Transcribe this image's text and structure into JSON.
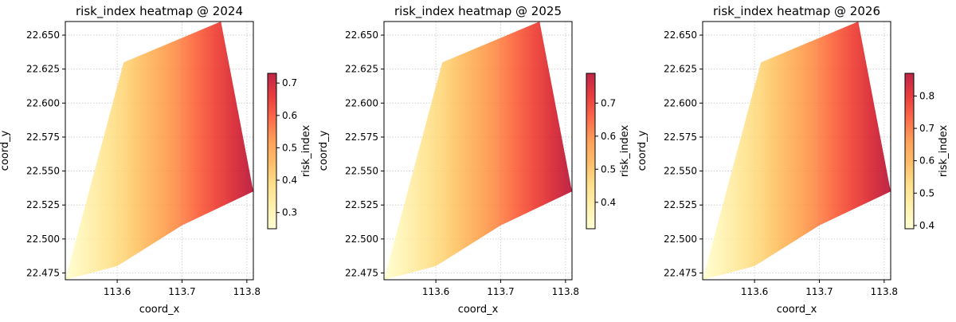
{
  "colormap": [
    "#ffffcc",
    "#ffeda0",
    "#fed976",
    "#feb24c",
    "#fd8d3c",
    "#fc4e2a",
    "#e31a1c",
    "#b10026"
  ],
  "chart_data": [
    {
      "type": "heatmap",
      "title": "risk_index heatmap @ 2024",
      "xlabel": "coord_x",
      "ylabel": "coord_y",
      "xlim": [
        113.52,
        113.81
      ],
      "ylim": [
        22.47,
        22.66
      ],
      "xticks": [
        113.6,
        113.7,
        113.8
      ],
      "yticks": [
        22.475,
        22.5,
        22.525,
        22.55,
        22.575,
        22.6,
        22.625,
        22.65
      ],
      "grid": true,
      "colorbar": {
        "label": "risk_index",
        "range": [
          0.25,
          0.73
        ],
        "ticks": [
          0.3,
          0.4,
          0.5,
          0.6,
          0.7
        ]
      },
      "region_polygon": [
        [
          113.52,
          22.47
        ],
        [
          113.61,
          22.63
        ],
        [
          113.76,
          22.66
        ],
        [
          113.81,
          22.535
        ],
        [
          113.7,
          22.51
        ],
        [
          113.6,
          22.48
        ]
      ],
      "value_vs_x": [
        [
          113.52,
          0.25
        ],
        [
          113.81,
          0.73
        ]
      ]
    },
    {
      "type": "heatmap",
      "title": "risk_index heatmap @ 2025",
      "xlabel": "coord_x",
      "ylabel": "coord_y",
      "xlim": [
        113.52,
        113.81
      ],
      "ylim": [
        22.47,
        22.66
      ],
      "xticks": [
        113.6,
        113.7,
        113.8
      ],
      "yticks": [
        22.475,
        22.5,
        22.525,
        22.55,
        22.575,
        22.6,
        22.625,
        22.65
      ],
      "grid": true,
      "colorbar": {
        "label": "risk_index",
        "range": [
          0.32,
          0.79
        ],
        "ticks": [
          0.4,
          0.5,
          0.6,
          0.7
        ]
      },
      "region_polygon": [
        [
          113.52,
          22.47
        ],
        [
          113.61,
          22.63
        ],
        [
          113.76,
          22.66
        ],
        [
          113.81,
          22.535
        ],
        [
          113.7,
          22.51
        ],
        [
          113.6,
          22.48
        ]
      ],
      "value_vs_x": [
        [
          113.52,
          0.32
        ],
        [
          113.81,
          0.79
        ]
      ]
    },
    {
      "type": "heatmap",
      "title": "risk_index heatmap @ 2026",
      "xlabel": "coord_x",
      "ylabel": "coord_y",
      "xlim": [
        113.52,
        113.81
      ],
      "ylim": [
        22.47,
        22.66
      ],
      "xticks": [
        113.6,
        113.7,
        113.8
      ],
      "yticks": [
        22.475,
        22.5,
        22.525,
        22.55,
        22.575,
        22.6,
        22.625,
        22.65
      ],
      "grid": true,
      "colorbar": {
        "label": "risk_index",
        "range": [
          0.39,
          0.87
        ],
        "ticks": [
          0.4,
          0.5,
          0.6,
          0.7,
          0.8
        ]
      },
      "region_polygon": [
        [
          113.52,
          22.47
        ],
        [
          113.61,
          22.63
        ],
        [
          113.76,
          22.66
        ],
        [
          113.81,
          22.535
        ],
        [
          113.7,
          22.51
        ],
        [
          113.6,
          22.48
        ]
      ],
      "value_vs_x": [
        [
          113.52,
          0.39
        ],
        [
          113.81,
          0.87
        ]
      ]
    }
  ]
}
